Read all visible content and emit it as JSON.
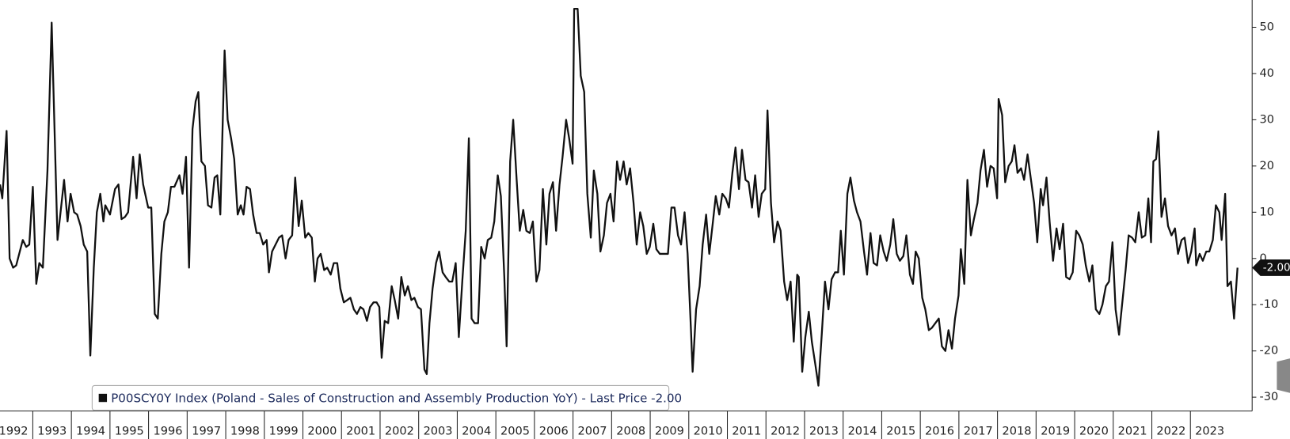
{
  "chart_data": {
    "type": "line",
    "xlim": [
      1992.15,
      2024.6
    ],
    "ylim": [
      -33,
      55.9
    ],
    "yticks": [
      -30,
      -20,
      -10,
      0,
      10,
      20,
      30,
      40,
      50
    ],
    "xticks": [
      1992,
      1993,
      1994,
      1995,
      1996,
      1997,
      1998,
      1999,
      2000,
      2001,
      2002,
      2003,
      2004,
      2005,
      2006,
      2007,
      2008,
      2009,
      2010,
      2011,
      2012,
      2013,
      2014,
      2015,
      2016,
      2017,
      2018,
      2019,
      2020,
      2021,
      2022,
      2023
    ],
    "last_value_label": "-2.00",
    "x": [
      1992.15,
      1992.21,
      1992.32,
      1992.4,
      1992.49,
      1992.57,
      1992.74,
      1992.83,
      1992.91,
      1993.0,
      1993.09,
      1993.17,
      1993.26,
      1993.38,
      1993.49,
      1993.64,
      1993.72,
      1993.81,
      1993.9,
      1993.98,
      1994.07,
      1994.15,
      1994.24,
      1994.32,
      1994.41,
      1994.49,
      1994.58,
      1994.66,
      1994.75,
      1994.83,
      1994.88,
      1995.0,
      1995.13,
      1995.22,
      1995.3,
      1995.39,
      1995.47,
      1995.6,
      1995.69,
      1995.77,
      1995.86,
      1995.99,
      1996.07,
      1996.16,
      1996.24,
      1996.33,
      1996.41,
      1996.5,
      1996.58,
      1996.67,
      1996.8,
      1996.88,
      1996.97,
      1997.05,
      1997.14,
      1997.22,
      1997.29,
      1997.37,
      1997.46,
      1997.54,
      1997.63,
      1997.71,
      1997.78,
      1997.86,
      1997.97,
      1998.05,
      1998.14,
      1998.22,
      1998.31,
      1998.39,
      1998.46,
      1998.54,
      1998.63,
      1998.71,
      1998.8,
      1998.88,
      1998.97,
      1999.06,
      1999.12,
      1999.2,
      1999.29,
      1999.38,
      1999.46,
      1999.55,
      1999.63,
      1999.72,
      1999.8,
      1999.89,
      1999.97,
      2000.06,
      2000.14,
      2000.23,
      2000.31,
      2000.38,
      2000.46,
      2000.55,
      2000.63,
      2000.72,
      2000.8,
      2000.89,
      2000.97,
      2001.06,
      2001.15,
      2001.23,
      2001.32,
      2001.4,
      2001.49,
      2001.57,
      2001.66,
      2001.74,
      2001.83,
      2001.91,
      2001.98,
      2002.04,
      2002.12,
      2002.21,
      2002.3,
      2002.38,
      2002.47,
      2002.55,
      2002.64,
      2002.72,
      2002.81,
      2002.89,
      2002.98,
      2003.06,
      2003.15,
      2003.21,
      2003.28,
      2003.36,
      2003.45,
      2003.53,
      2003.62,
      2003.7,
      2003.79,
      2003.87,
      2003.96,
      2004.04,
      2004.13,
      2004.22,
      2004.3,
      2004.37,
      2004.45,
      2004.54,
      2004.62,
      2004.71,
      2004.79,
      2004.88,
      2004.96,
      2005.05,
      2005.13,
      2005.22,
      2005.28,
      2005.37,
      2005.45,
      2005.54,
      2005.62,
      2005.71,
      2005.79,
      2005.88,
      2005.96,
      2006.05,
      2006.13,
      2006.22,
      2006.31,
      2006.39,
      2006.48,
      2006.56,
      2006.65,
      2006.73,
      2006.82,
      2006.9,
      2006.99,
      2007.03,
      2007.12,
      2007.2,
      2007.29,
      2007.37,
      2007.46,
      2007.54,
      2007.63,
      2007.71,
      2007.8,
      2007.88,
      2007.97,
      2008.05,
      2008.14,
      2008.22,
      2008.31,
      2008.39,
      2008.48,
      2008.57,
      2008.65,
      2008.74,
      2008.82,
      2008.91,
      2008.99,
      2009.08,
      2009.16,
      2009.25,
      2009.33,
      2009.46,
      2009.55,
      2009.63,
      2009.72,
      2009.8,
      2009.89,
      2009.97,
      2010.06,
      2010.1,
      2010.19,
      2010.28,
      2010.36,
      2010.45,
      2010.53,
      2010.62,
      2010.7,
      2010.79,
      2010.87,
      2010.96,
      2011.04,
      2011.13,
      2011.21,
      2011.3,
      2011.38,
      2011.47,
      2011.55,
      2011.64,
      2011.72,
      2011.81,
      2011.89,
      2011.98,
      2012.04,
      2012.13,
      2012.21,
      2012.3,
      2012.38,
      2012.47,
      2012.55,
      2012.64,
      2012.72,
      2012.81,
      2012.85,
      2012.94,
      2013.02,
      2013.11,
      2013.19,
      2013.28,
      2013.36,
      2013.45,
      2013.53,
      2013.62,
      2013.7,
      2013.79,
      2013.87,
      2013.94,
      2014.02,
      2014.11,
      2014.19,
      2014.28,
      2014.36,
      2014.45,
      2014.54,
      2014.62,
      2014.71,
      2014.79,
      2014.88,
      2014.96,
      2015.05,
      2015.13,
      2015.22,
      2015.3,
      2015.39,
      2015.47,
      2015.56,
      2015.64,
      2015.73,
      2015.81,
      2015.88,
      2015.96,
      2016.05,
      2016.13,
      2016.22,
      2016.3,
      2016.39,
      2016.48,
      2016.56,
      2016.65,
      2016.73,
      2016.82,
      2016.9,
      2016.99,
      2017.05,
      2017.14,
      2017.22,
      2017.31,
      2017.39,
      2017.48,
      2017.56,
      2017.65,
      2017.73,
      2017.82,
      2017.9,
      2017.99,
      2018.03,
      2018.12,
      2018.2,
      2018.29,
      2018.37,
      2018.44,
      2018.52,
      2018.61,
      2018.69,
      2018.78,
      2018.86,
      2018.95,
      2019.03,
      2019.12,
      2019.18,
      2019.27,
      2019.35,
      2019.44,
      2019.53,
      2019.61,
      2019.7,
      2019.78,
      2019.87,
      2019.95,
      2020.04,
      2020.12,
      2020.21,
      2020.29,
      2020.38,
      2020.46,
      2020.55,
      2020.64,
      2020.72,
      2020.81,
      2020.89,
      2020.98,
      2021.06,
      2021.15,
      2021.23,
      2021.32,
      2021.4,
      2021.49,
      2021.57,
      2021.66,
      2021.74,
      2021.83,
      2021.91,
      2021.98,
      2022.04,
      2022.11,
      2022.17,
      2022.25,
      2022.34,
      2022.42,
      2022.51,
      2022.6,
      2022.68,
      2022.77,
      2022.85,
      2022.94,
      2023.02,
      2023.11,
      2023.15,
      2023.24,
      2023.32,
      2023.41,
      2023.49,
      2023.58,
      2023.66,
      2023.75,
      2023.81,
      2023.9,
      2023.96,
      2024.05,
      2024.13,
      2024.22
    ],
    "series": [
      {
        "name": "P00SCY0Y Index (Poland - Sales of Construction and Assembly Production YoY) - Last Price -2.00",
        "color": "#111111",
        "values": [
          16,
          13,
          27.6,
          0,
          -2,
          -1.5,
          4,
          2.5,
          3,
          15.5,
          -5.5,
          -1,
          -2,
          19,
          51,
          4,
          10,
          17,
          8,
          14,
          10,
          9.5,
          7,
          3,
          1.5,
          -21,
          -2,
          10,
          14,
          8,
          11.5,
          9.5,
          15,
          16,
          8.5,
          9,
          10,
          22,
          13,
          22.5,
          16,
          11,
          11,
          -12,
          -13,
          1,
          8,
          10,
          15.5,
          15.5,
          18,
          14,
          22,
          -2,
          28,
          34,
          36,
          21,
          20,
          11.5,
          11,
          17.5,
          18,
          9.5,
          45,
          30,
          26,
          21.5,
          9.5,
          11.5,
          9.5,
          15.5,
          15,
          9.5,
          5.5,
          5.5,
          3,
          4,
          -3,
          1.5,
          3,
          4.5,
          5,
          0,
          4,
          5,
          17.5,
          7,
          12.5,
          4.5,
          5.5,
          4.5,
          -5,
          0,
          1,
          -2.5,
          -2,
          -3.5,
          -1,
          -1,
          -6.5,
          -9.5,
          -9,
          -8.5,
          -11,
          -12,
          -10.5,
          -11,
          -13.5,
          -10.5,
          -9.5,
          -9.5,
          -10.5,
          -21.5,
          -13.5,
          -14,
          -6,
          -9,
          -13,
          -4,
          -8,
          -6,
          -9,
          -8.5,
          -10.5,
          -11,
          -24,
          -25,
          -14,
          -6.5,
          -1,
          1.5,
          -3,
          -4,
          -5,
          -5,
          -1,
          -17,
          -5,
          6,
          26,
          -13,
          -14,
          -14,
          2.5,
          0,
          4,
          4.5,
          8,
          18,
          13.5,
          -4,
          -19,
          21,
          30,
          17,
          6,
          10.5,
          6,
          5.5,
          8,
          -5,
          -2.5,
          15,
          3,
          14,
          16.5,
          6,
          16,
          22,
          30,
          26,
          20.5,
          54,
          54,
          39.5,
          36,
          14,
          4.5,
          19,
          14,
          1.5,
          5,
          12,
          14,
          8,
          21,
          17,
          21,
          16,
          19.5,
          12,
          3,
          10,
          7,
          1,
          2.5,
          7.5,
          2,
          1,
          1,
          1,
          11,
          11,
          5,
          3,
          10,
          1,
          -16,
          -24.5,
          -11,
          -6,
          3,
          9.5,
          1,
          7.5,
          13.5,
          9.5,
          14,
          13,
          11,
          18.5,
          24,
          15,
          23.5,
          17,
          16.5,
          11,
          18,
          9,
          14,
          15,
          32,
          12,
          3.5,
          8,
          6,
          -5,
          -9,
          -5,
          -18,
          -3.5,
          -4,
          -24.5,
          -17,
          -11.5,
          -18,
          -23,
          -27.5,
          -16,
          -5,
          -11,
          -4.5,
          -3,
          -3,
          6,
          -3.5,
          14,
          17.5,
          12.5,
          10,
          8,
          1.5,
          -3.5,
          5.5,
          -1,
          -1.5,
          5,
          1.5,
          -0.5,
          3,
          8.5,
          1,
          -0.5,
          0.5,
          5,
          -3.5,
          -5.5,
          1.5,
          0,
          -8.5,
          -11,
          -15.5,
          -15,
          -14,
          -13,
          -19,
          -20,
          -15.5,
          -19.5,
          -13,
          -8,
          2,
          -5.5,
          17,
          5,
          8.5,
          12,
          19,
          23.5,
          15.5,
          20,
          19.5,
          13,
          34.5,
          31,
          16.5,
          20,
          21,
          24.5,
          18.5,
          19.5,
          17,
          22.5,
          17.5,
          12,
          3.5,
          15,
          11.5,
          17.5,
          8,
          -0.5,
          6.5,
          2,
          7.5,
          -4,
          -4.5,
          -3,
          6,
          5,
          3,
          -1.5,
          -5,
          -1.5,
          -11,
          -12,
          -10,
          -6,
          -5,
          3.5,
          -11,
          -16.5,
          -10,
          -2.5,
          5,
          4.5,
          3.5,
          10,
          4.5,
          5,
          13,
          3.5,
          21,
          21.5,
          27.5,
          9,
          13,
          7,
          5,
          6.5,
          1,
          4,
          4.5,
          -1,
          1.5,
          6.5,
          -1.5,
          1,
          -0.5,
          1.5,
          1.5,
          4,
          11.5,
          10,
          4,
          14,
          -6,
          -5,
          -13,
          -2
        ]
      }
    ]
  }
}
